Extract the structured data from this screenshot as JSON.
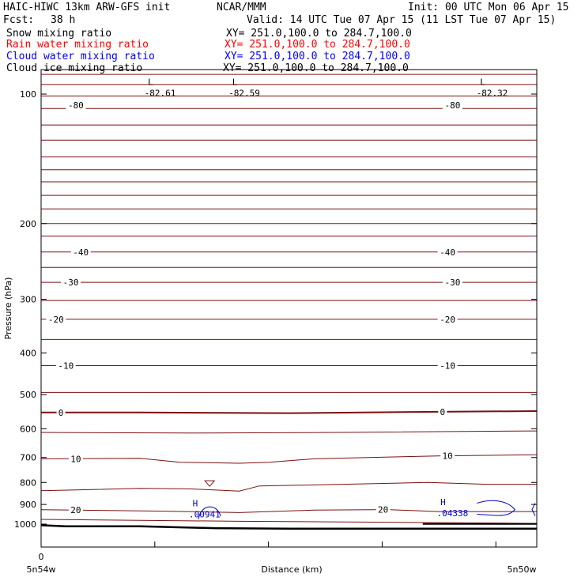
{
  "header": {
    "model": "HAIC-HIWC 13km ARW-GFS init",
    "org": "NCAR/MMM",
    "init": "Init: 00 UTC Mon 06 Apr 15",
    "fcst_label": "Fcst:",
    "fcst_value": "38 h",
    "valid": "Valid: 14 UTC Tue 07 Apr 15 (11 LST Tue 07 Apr 15)"
  },
  "fields": [
    {
      "name": "Snow mixing ratio",
      "xy": "XY= 251.0,100.0 to 284.7,100.0",
      "color": "#000000"
    },
    {
      "name": "Rain water mixing ratio",
      "xy": "XY= 251.0,100.0 to 284.7,100.0",
      "color": "#ff0000"
    },
    {
      "name": "Cloud water mixing ratio",
      "xy": "XY= 251.0,100.0 to 284.7,100.0",
      "color": "#0000ff"
    },
    {
      "name": "Cloud ice mixing ratio",
      "xy": "XY= 251.0,100.0 to 284.7,100.0",
      "color": "#000000"
    }
  ],
  "colors": {
    "contour": "#7a1010",
    "terrain": "#000000",
    "cloud": "#0000cc"
  },
  "chart_data": {
    "type": "cross-section",
    "ylabel": "Pressure (hPa)",
    "xlabel": "Distance (km)",
    "x_left_label": "5n54w",
    "x_right_label": "5n50w",
    "x_zero_label": "0",
    "y_axis": "log-pressure",
    "y_ticks": [
      100,
      200,
      300,
      400,
      500,
      600,
      700,
      800,
      900,
      1000
    ],
    "contour_labels": [
      {
        "text": "-80",
        "x": 0.07,
        "p": 106
      },
      {
        "text": "-80",
        "x": 0.83,
        "p": 106
      },
      {
        "text": "-40",
        "x": 0.08,
        "p": 233
      },
      {
        "text": "-40",
        "x": 0.82,
        "p": 233
      },
      {
        "text": "-30",
        "x": 0.06,
        "p": 274
      },
      {
        "text": "-30",
        "x": 0.83,
        "p": 274
      },
      {
        "text": "-20",
        "x": 0.03,
        "p": 334
      },
      {
        "text": "-20",
        "x": 0.82,
        "p": 334
      },
      {
        "text": "-10",
        "x": 0.05,
        "p": 428
      },
      {
        "text": "-10",
        "x": 0.82,
        "p": 428
      },
      {
        "text": "0",
        "x": 0.04,
        "p": 550
      },
      {
        "text": "0",
        "x": 0.81,
        "p": 548
      },
      {
        "text": "10",
        "x": 0.07,
        "p": 705
      },
      {
        "text": "10",
        "x": 0.82,
        "p": 694
      },
      {
        "text": "20",
        "x": 0.07,
        "p": 927
      },
      {
        "text": "20",
        "x": 0.69,
        "p": 925
      }
    ],
    "extrema": [
      {
        "type": "L",
        "value": "-82.61",
        "x": 0.24,
        "p": 99
      },
      {
        "type": "L",
        "value": "-82.59",
        "x": 0.41,
        "p": 99
      },
      {
        "type": "L",
        "value": "-82.32",
        "x": 0.91,
        "p": 99
      },
      {
        "type": "H",
        "value": ".00941",
        "x": 0.33,
        "p": 945
      },
      {
        "type": "H",
        "value": ".04338",
        "x": 0.83,
        "p": 938
      }
    ]
  }
}
